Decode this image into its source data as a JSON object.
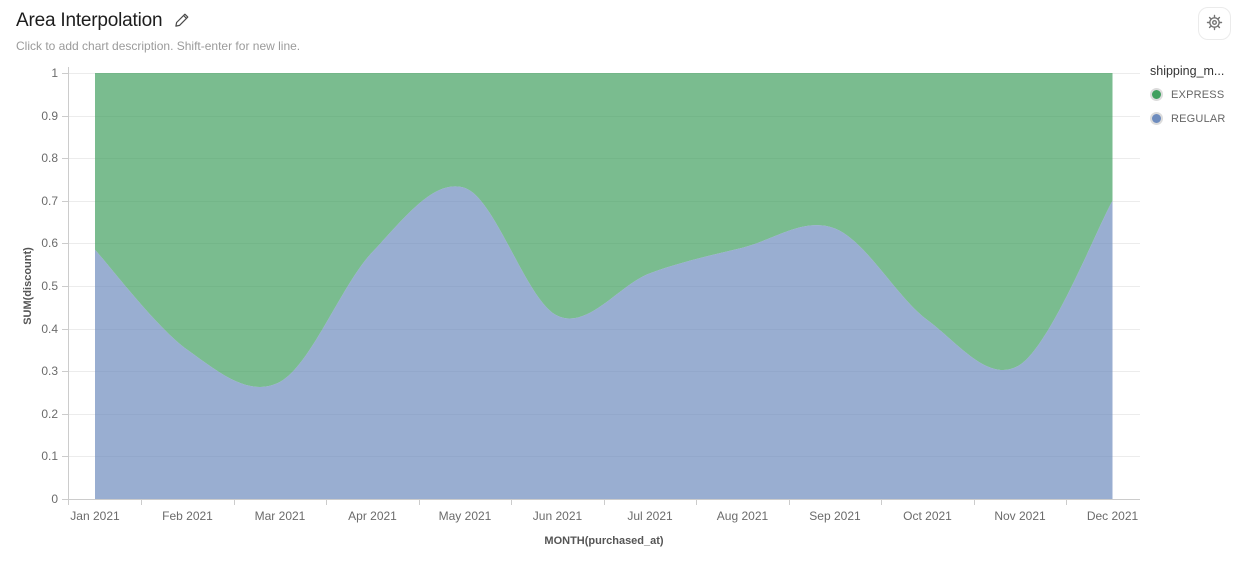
{
  "header": {
    "title": "Area Interpolation",
    "subtitle": "Click to add chart description. Shift-enter for new line."
  },
  "toolbar": {
    "settings_icon": "gear-icon"
  },
  "legend": {
    "title": "shipping_m...",
    "items": [
      {
        "label": "EXPRESS",
        "color": "#41A05F"
      },
      {
        "label": "REGULAR",
        "color": "#6E8CBE"
      }
    ]
  },
  "chart_data": {
    "type": "area",
    "stacked": true,
    "smooth": true,
    "normalized": true,
    "title": "Area Interpolation",
    "x": [
      "Jan 2021",
      "Feb 2021",
      "Mar 2021",
      "Apr 2021",
      "May 2021",
      "Jun 2021",
      "Jul 2021",
      "Aug 2021",
      "Sep 2021",
      "Oct 2021",
      "Nov 2021",
      "Dec 2021"
    ],
    "series": [
      {
        "name": "EXPRESS",
        "color": "#41A05F",
        "values": [
          0.415,
          0.65,
          0.725,
          0.42,
          0.27,
          0.57,
          0.47,
          0.41,
          0.365,
          0.58,
          0.685,
          0.3
        ]
      },
      {
        "name": "REGULAR",
        "color": "#6E8CBE",
        "values": [
          0.585,
          0.35,
          0.275,
          0.58,
          0.73,
          0.43,
          0.53,
          0.59,
          0.635,
          0.42,
          0.315,
          0.7
        ]
      }
    ],
    "xlabel": "MONTH(purchased_at)",
    "ylabel": "SUM(discount)",
    "ylim": [
      0,
      1
    ],
    "y_ticks": [
      "0",
      "0.1",
      "0.2",
      "0.3",
      "0.4",
      "0.5",
      "0.6",
      "0.7",
      "0.8",
      "0.9",
      "1"
    ],
    "grid": true,
    "legend_position": "right",
    "legend_title": "shipping_m...",
    "fill_opacity": 0.7,
    "grid_color": "#ececec",
    "axis_color": "#cccccc"
  }
}
